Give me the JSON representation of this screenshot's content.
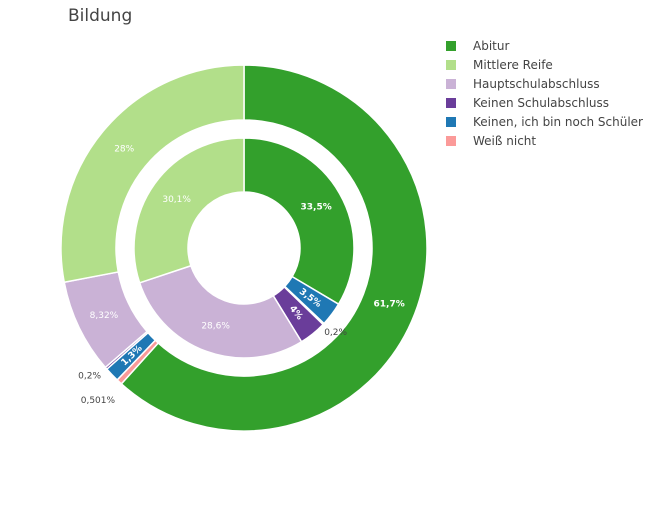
{
  "chart_data": {
    "type": "donut",
    "title": "Bildung",
    "legend_position": "top-right",
    "categories": [
      "Abitur",
      "Mittlere Reife",
      "Hauptschulabschluss",
      "Keinen Schulabschluss",
      "Keinen, ich bin noch Schüler",
      "Weiß nicht"
    ],
    "colors": [
      "#33a02c",
      "#b2df8a",
      "#cab2d6",
      "#6a3d9a",
      "#1f78b4",
      "#fb9a99"
    ],
    "series": [
      {
        "ring": "inner",
        "values": [
          33.5,
          30.1,
          28.6,
          4,
          3.5,
          0.2
        ],
        "labels": [
          "33,5%",
          "30,1%",
          "28,6%",
          "4%",
          "3,5%",
          "0,2%"
        ]
      },
      {
        "ring": "outer",
        "values": [
          61.7,
          28,
          8.32,
          0.2,
          1.3,
          0.501
        ],
        "labels": [
          "61,7%",
          "28%",
          "8,32%",
          "0,2%",
          "1,3%",
          "0,501%"
        ]
      }
    ]
  }
}
